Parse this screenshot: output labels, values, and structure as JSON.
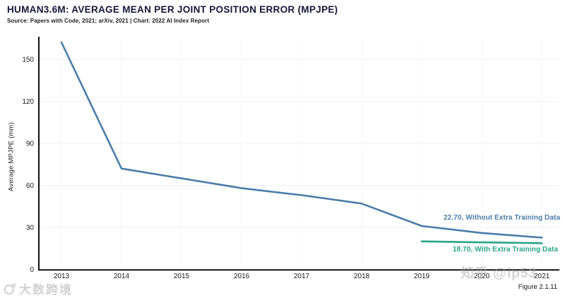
{
  "header": {
    "title": "HUMAN3.6M: AVERAGE MEAN PER JOINT POSITION ERROR (MPJPE)",
    "source": "Source: Papers with Code, 2021; arXiv, 2021 | Chart: 2022 AI Index Report"
  },
  "figure_label": "Figure 2.1.11",
  "watermarks": {
    "bottom_left": "大数跨境",
    "bottom_right": "知乎 @ip53"
  },
  "colors": {
    "without_extra": "#4a7da8",
    "with_extra": "#27a487",
    "grid_vertical": "#f4f4f4",
    "grid_horizontal": "#efefef",
    "axis": "#111111",
    "title": "#17163a",
    "tick_text": "#1a1a1a"
  },
  "chart_data": {
    "type": "line",
    "title": "HUMAN3.6M: AVERAGE MEAN PER JOINT POSITION ERROR (MPJPE)",
    "xlabel": "",
    "ylabel": "Average MPJPE (mm)",
    "x_ticks": [
      2013,
      2014,
      2015,
      2016,
      2017,
      2018,
      2019,
      2020,
      2021
    ],
    "y_ticks": [
      0,
      30,
      60,
      90,
      120,
      150
    ],
    "ylim": [
      0,
      165
    ],
    "grid": true,
    "legend_position": "inline-annotations",
    "series": [
      {
        "name": "Without Extra Training Data",
        "color": "#4a7da8",
        "x": [
          2013,
          2014,
          2015,
          2016,
          2017,
          2018,
          2019,
          2020,
          2021
        ],
        "values": [
          162.1,
          72,
          65,
          58,
          53,
          47,
          31,
          26,
          22.7
        ],
        "final_label": "22.70",
        "annotation": "22.70, Without Extra Training Data"
      },
      {
        "name": "With Extra Training Data",
        "color": "#27a487",
        "x": [
          2019,
          2020,
          2021
        ],
        "values": [
          20.0,
          19.3,
          18.7
        ],
        "final_label": "18.70",
        "annotation": "18.70, With Extra Training Data"
      }
    ]
  }
}
